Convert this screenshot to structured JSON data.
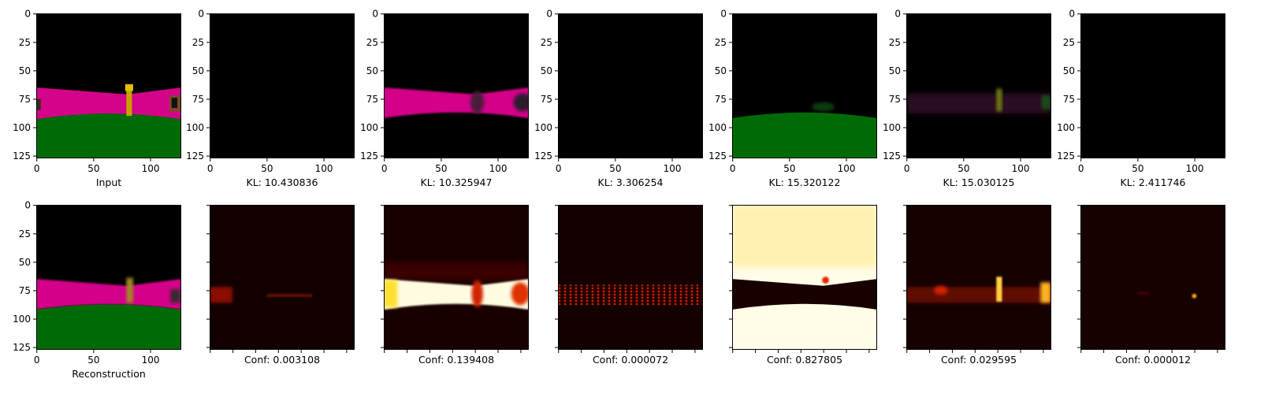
{
  "chart_data": [
    {
      "type": "heatmap",
      "row": "top",
      "caption": "Input",
      "content": "input-image",
      "x_ticks": [
        "0",
        "50",
        "100"
      ],
      "y_ticks": [
        "0",
        "25",
        "50",
        "75",
        "100",
        "125"
      ],
      "xlim": [
        0,
        127
      ],
      "ylim": [
        127,
        0
      ],
      "colors": {
        "sky": "#000000",
        "wall": "#d4038a",
        "floor": "#006b06",
        "pillar": "#c8a000",
        "object": "#7a4a2a"
      }
    },
    {
      "type": "heatmap",
      "row": "top",
      "caption": "KL: 10.430836",
      "kl": 10.430836,
      "content": "dark",
      "x_ticks": [
        "0",
        "50",
        "100"
      ],
      "y_ticks": [
        "0",
        "25",
        "50",
        "75",
        "100",
        "125"
      ]
    },
    {
      "type": "heatmap",
      "row": "top",
      "caption": "KL: 10.325947",
      "kl": 10.325947,
      "content": "wall-only",
      "x_ticks": [
        "0",
        "50",
        "100"
      ],
      "y_ticks": [
        "0",
        "25",
        "50",
        "75",
        "100",
        "125"
      ]
    },
    {
      "type": "heatmap",
      "row": "top",
      "caption": "KL: 3.306254",
      "kl": 3.306254,
      "content": "dark",
      "x_ticks": [
        "0",
        "50",
        "100"
      ],
      "y_ticks": [
        "0",
        "25",
        "50",
        "75",
        "100",
        "125"
      ]
    },
    {
      "type": "heatmap",
      "row": "top",
      "caption": "KL: 15.320122",
      "kl": 15.320122,
      "content": "floor-only",
      "x_ticks": [
        "0",
        "50",
        "100"
      ],
      "y_ticks": [
        "0",
        "25",
        "50",
        "75",
        "100",
        "125"
      ]
    },
    {
      "type": "heatmap",
      "row": "top",
      "caption": "KL: 15.030125",
      "kl": 15.030125,
      "content": "faint-objects",
      "x_ticks": [
        "0",
        "50",
        "100"
      ],
      "y_ticks": [
        "0",
        "25",
        "50",
        "75",
        "100",
        "125"
      ]
    },
    {
      "type": "heatmap",
      "row": "top",
      "caption": "KL: 2.411746",
      "kl": 2.411746,
      "content": "dark",
      "x_ticks": [
        "0",
        "50",
        "100"
      ],
      "y_ticks": [
        "0",
        "25",
        "50",
        "75",
        "100",
        "125"
      ]
    },
    {
      "type": "heatmap",
      "row": "bottom",
      "caption": "Reconstruction",
      "content": "reconstruction",
      "x_ticks": [
        "0",
        "50",
        "100"
      ],
      "y_ticks": [
        "0",
        "25",
        "50",
        "75",
        "100",
        "125"
      ]
    },
    {
      "type": "heatmap",
      "row": "bottom",
      "caption": "Conf: 0.003108",
      "conf": 0.003108,
      "content": "mask-faint-band",
      "colormap": "hot"
    },
    {
      "type": "heatmap",
      "row": "bottom",
      "caption": "Conf: 0.139408",
      "conf": 0.139408,
      "content": "mask-wall",
      "colormap": "hot"
    },
    {
      "type": "heatmap",
      "row": "bottom",
      "caption": "Conf: 0.000072",
      "conf": 7.2e-05,
      "content": "mask-dotted-band",
      "colormap": "hot"
    },
    {
      "type": "heatmap",
      "row": "bottom",
      "caption": "Conf: 0.827805",
      "conf": 0.827805,
      "content": "mask-inverse-wall",
      "colormap": "hot"
    },
    {
      "type": "heatmap",
      "row": "bottom",
      "caption": "Conf: 0.029595",
      "conf": 0.029595,
      "content": "mask-objects",
      "colormap": "hot"
    },
    {
      "type": "heatmap",
      "row": "bottom",
      "caption": "Conf: 0.000012",
      "conf": 1.2e-05,
      "content": "mask-spot",
      "colormap": "hot"
    }
  ]
}
